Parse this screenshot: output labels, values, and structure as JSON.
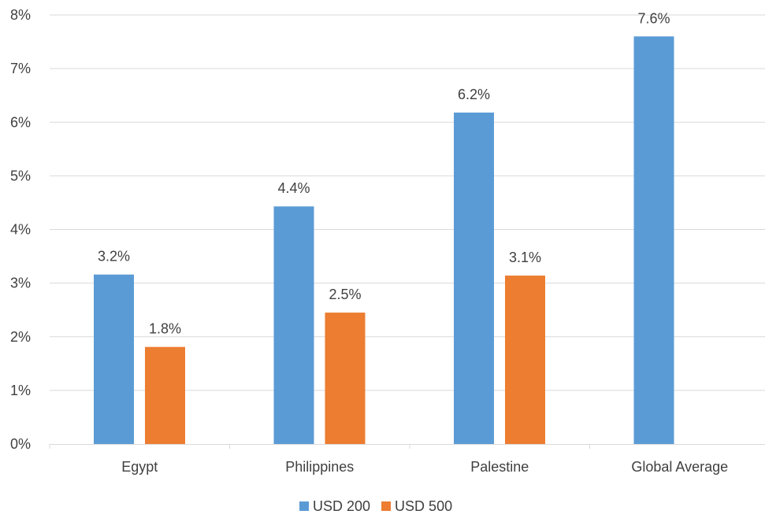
{
  "chart_data": {
    "type": "bar",
    "categories": [
      "Egypt",
      "Philippines",
      "Palestine",
      "Global Average"
    ],
    "series": [
      {
        "name": "USD 200",
        "values": [
          3.16,
          4.43,
          6.18,
          7.6
        ],
        "labels": [
          "3.2%",
          "4.4%",
          "6.2%",
          "7.6%"
        ],
        "color": "#5b9bd5"
      },
      {
        "name": "USD 500",
        "values": [
          1.81,
          2.45,
          3.14,
          null
        ],
        "labels": [
          "1.8%",
          "2.5%",
          "3.1%",
          ""
        ],
        "color": "#ed7d31"
      }
    ],
    "ylim": [
      0,
      8
    ],
    "yticks": [
      "0%",
      "1%",
      "2%",
      "3%",
      "4%",
      "5%",
      "6%",
      "7%",
      "8%"
    ],
    "grid": true,
    "legend_position": "bottom"
  }
}
